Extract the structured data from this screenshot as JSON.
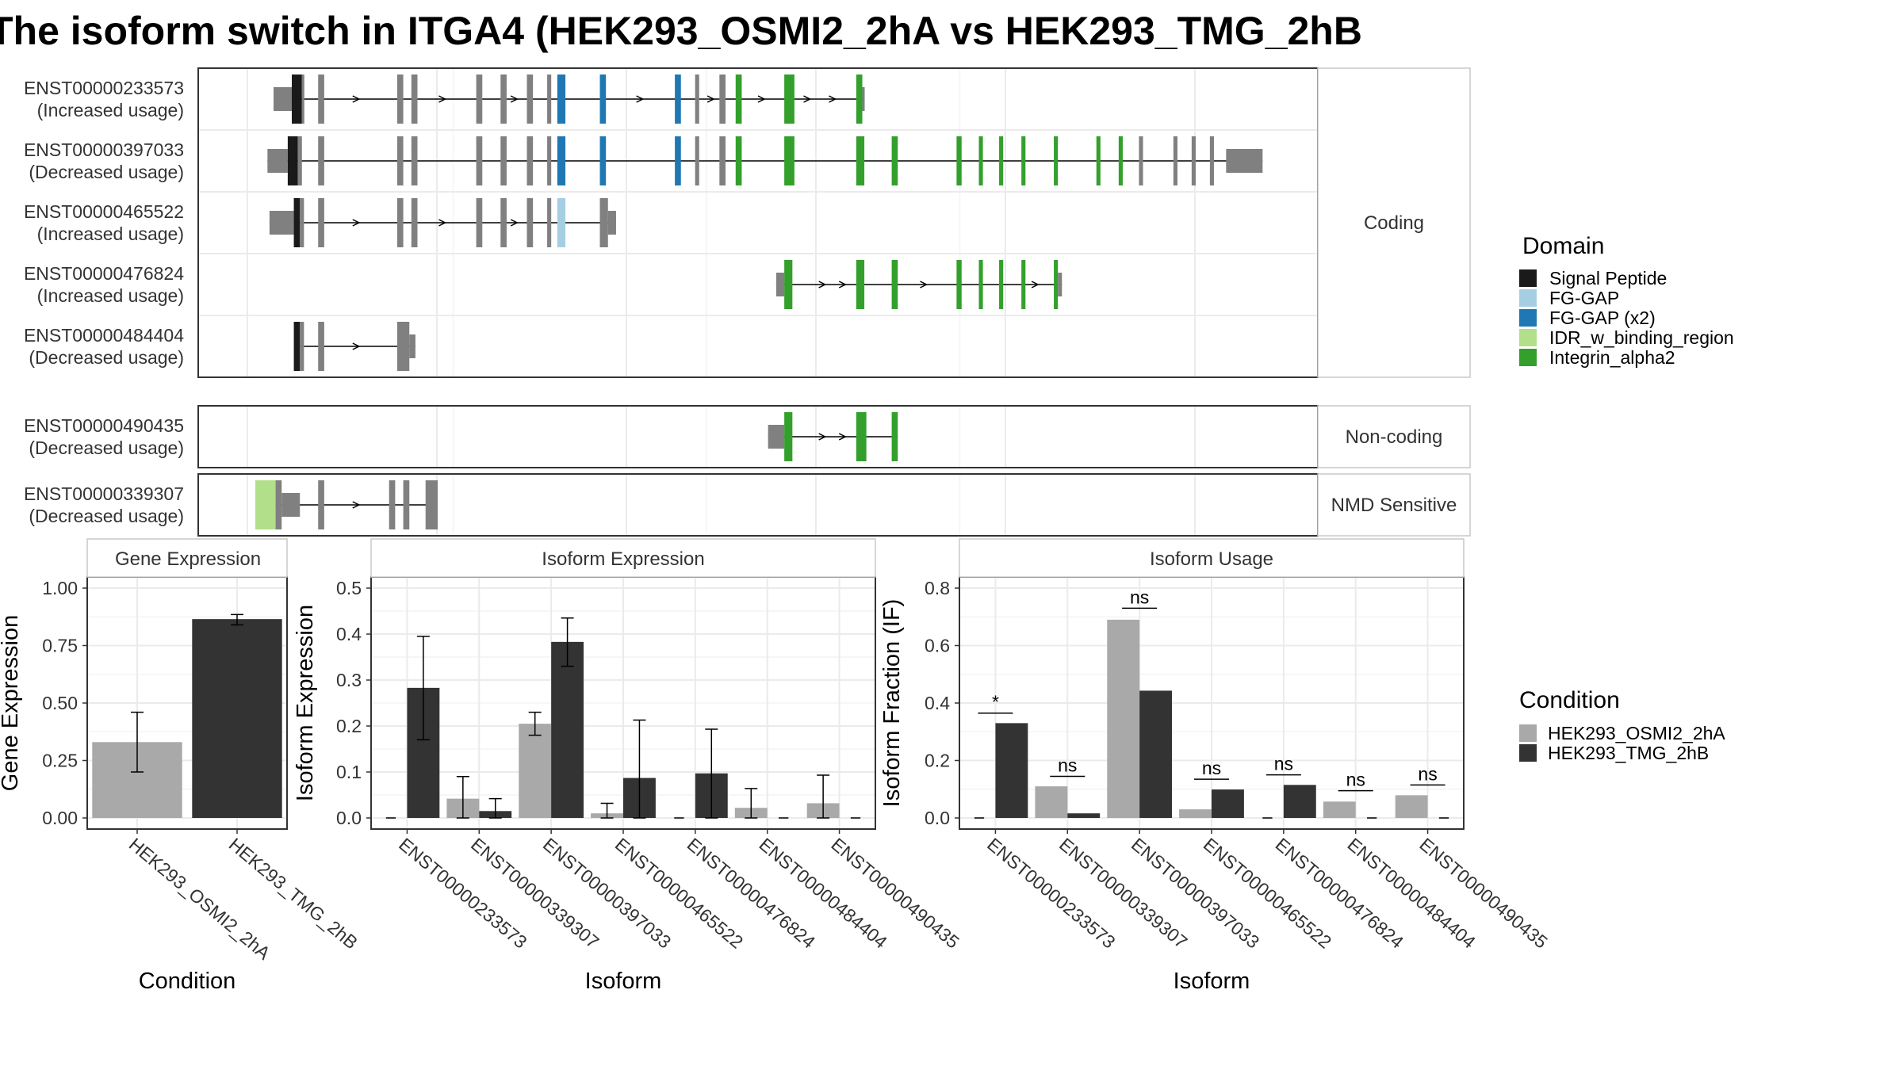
{
  "title": "The isoform switch in ITGA4 (HEK293_OSMI2_2hA vs HEK293_TMG_2hB",
  "colors": {
    "signal": "#1a1a1a",
    "fg_gap": "#a6cee3",
    "fg_gap_x2": "#1f78b4",
    "idr": "#b2df8a",
    "integrin": "#33a02c",
    "exon": "#808080",
    "cond_a": "#a9a9a9",
    "cond_b": "#333333"
  },
  "structure": {
    "xrange": [
      0,
      1000
    ],
    "groups": [
      {
        "label": "Coding",
        "transcripts": [
          {
            "id": "ENST00000233573",
            "usage": "(Increased usage)",
            "exons": [
              [
                18,
                36,
                "thin"
              ],
              [
                36,
                46,
                "signal"
              ],
              [
                46,
                48,
                "thick"
              ],
              [
                62,
                68,
                "thick"
              ],
              [
                140,
                146,
                "thick"
              ],
              [
                154,
                160,
                "thick"
              ],
              [
                218,
                224,
                "thick"
              ],
              [
                242,
                248,
                "thick"
              ],
              [
                268,
                274,
                "thick"
              ],
              [
                288,
                292,
                "thick"
              ],
              [
                298,
                306,
                "fg2"
              ],
              [
                340,
                346,
                "fg2"
              ],
              [
                414,
                420,
                "fg2"
              ],
              [
                434,
                438,
                "thick"
              ],
              [
                458,
                464,
                "thick"
              ],
              [
                474,
                480,
                "integrin"
              ],
              [
                522,
                532,
                "integrin"
              ],
              [
                593,
                599,
                "integrin"
              ],
              [
                599,
                601,
                "thin"
              ]
            ],
            "arrows": [
              100,
              185,
              256,
              380,
              450,
              500,
              545,
              570
            ]
          },
          {
            "id": "ENST00000397033",
            "usage": "(Decreased usage)",
            "exons": [
              [
                12,
                32,
                "thin"
              ],
              [
                32,
                42,
                "signal"
              ],
              [
                42,
                46,
                "thick"
              ],
              [
                62,
                68,
                "thick"
              ],
              [
                140,
                146,
                "thick"
              ],
              [
                154,
                160,
                "thick"
              ],
              [
                218,
                224,
                "thick"
              ],
              [
                242,
                248,
                "thick"
              ],
              [
                268,
                274,
                "thick"
              ],
              [
                288,
                292,
                "thick"
              ],
              [
                298,
                306,
                "fg2"
              ],
              [
                340,
                346,
                "fg2"
              ],
              [
                414,
                420,
                "fg2"
              ],
              [
                434,
                438,
                "thick"
              ],
              [
                458,
                464,
                "thick"
              ],
              [
                474,
                480,
                "integrin"
              ],
              [
                522,
                532,
                "integrin"
              ],
              [
                593,
                601,
                "integrin"
              ],
              [
                628,
                634,
                "integrin"
              ],
              [
                692,
                697,
                "integrin"
              ],
              [
                714,
                718,
                "integrin"
              ],
              [
                734,
                738,
                "integrin"
              ],
              [
                756,
                760,
                "integrin"
              ],
              [
                788,
                792,
                "integrin"
              ],
              [
                830,
                834,
                "integrin"
              ],
              [
                852,
                856,
                "integrin"
              ],
              [
                872,
                876,
                "thick"
              ],
              [
                906,
                910,
                "thick"
              ],
              [
                924,
                928,
                "thick"
              ],
              [
                942,
                946,
                "thick"
              ],
              [
                958,
                994,
                "thin"
              ]
            ],
            "arrows": []
          },
          {
            "id": "ENST00000465522",
            "usage": "(Increased usage)",
            "exons": [
              [
                14,
                38,
                "thin"
              ],
              [
                38,
                44,
                "signal"
              ],
              [
                44,
                48,
                "thick"
              ],
              [
                62,
                68,
                "thick"
              ],
              [
                140,
                146,
                "thick"
              ],
              [
                154,
                160,
                "thick"
              ],
              [
                218,
                224,
                "thick"
              ],
              [
                242,
                248,
                "thick"
              ],
              [
                268,
                274,
                "thick"
              ],
              [
                288,
                292,
                "thick"
              ],
              [
                298,
                306,
                "fg1"
              ],
              [
                340,
                348,
                "thick"
              ],
              [
                348,
                356,
                "thin"
              ]
            ],
            "arrows": [
              100,
              185,
              256
            ]
          },
          {
            "id": "ENST00000476824",
            "usage": "(Increased usage)",
            "exons": [
              [
                514,
                522,
                "thin"
              ],
              [
                522,
                530,
                "integrin"
              ],
              [
                593,
                601,
                "integrin"
              ],
              [
                628,
                634,
                "integrin"
              ],
              [
                692,
                697,
                "integrin"
              ],
              [
                714,
                718,
                "integrin"
              ],
              [
                734,
                738,
                "integrin"
              ],
              [
                756,
                760,
                "integrin"
              ],
              [
                788,
                792,
                "integrin"
              ],
              [
                792,
                796,
                "thin"
              ]
            ],
            "arrows": [
              560,
              580,
              660,
              770
            ]
          },
          {
            "id": "ENST00000484404",
            "usage": "(Decreased usage)",
            "exons": [
              [
                38,
                44,
                "signal"
              ],
              [
                44,
                48,
                "thick"
              ],
              [
                62,
                68,
                "thick"
              ],
              [
                140,
                152,
                "thick"
              ],
              [
                152,
                158,
                "thin"
              ]
            ],
            "arrows": [
              100
            ]
          }
        ]
      },
      {
        "label": "Non-coding",
        "transcripts": [
          {
            "id": "ENST00000490435",
            "usage": "(Decreased usage)",
            "exons": [
              [
                506,
                522,
                "thin"
              ],
              [
                522,
                530,
                "integrin"
              ],
              [
                593,
                603,
                "integrin"
              ],
              [
                628,
                634,
                "integrin"
              ]
            ],
            "arrows": [
              560,
              580
            ]
          }
        ]
      },
      {
        "label": "NMD Sensitive",
        "transcripts": [
          {
            "id": "ENST00000339307",
            "usage": "(Decreased usage)",
            "exons": [
              [
                0,
                20,
                "idr"
              ],
              [
                20,
                26,
                "thick"
              ],
              [
                26,
                44,
                "thin"
              ],
              [
                62,
                68,
                "thick"
              ],
              [
                132,
                138,
                "thick"
              ],
              [
                146,
                152,
                "thick"
              ],
              [
                168,
                180,
                "thick"
              ]
            ],
            "arrows": [
              100
            ]
          }
        ]
      }
    ],
    "legend": {
      "title": "Domain",
      "items": [
        {
          "name": "Signal Peptide",
          "color": "#1a1a1a"
        },
        {
          "name": "FG-GAP",
          "color": "#a6cee3"
        },
        {
          "name": "FG-GAP (x2)",
          "color": "#1f78b4"
        },
        {
          "name": "IDR_w_binding_region",
          "color": "#b2df8a"
        },
        {
          "name": "Integrin_alpha2",
          "color": "#33a02c"
        }
      ]
    }
  },
  "chart_data": [
    {
      "type": "bar",
      "panel_title": "Gene Expression",
      "xlabel": "Condition",
      "ylabel": "Gene Expression",
      "ylim": [
        0,
        1.0
      ],
      "yticks": [
        "0.00",
        "0.25",
        "0.50",
        "0.75",
        "1.00"
      ],
      "categories": [
        "HEK293_OSMI2_2hA",
        "HEK293_TMG_2hB"
      ],
      "values": [
        0.33,
        0.865
      ],
      "errors": [
        [
          0.2,
          0.46
        ],
        [
          0.84,
          0.885
        ]
      ]
    },
    {
      "type": "bar",
      "panel_title": "Isoform Expression",
      "xlabel": "Isoform",
      "ylabel": "Isoform Expression",
      "ylim": [
        0,
        0.5
      ],
      "yticks": [
        "0.0",
        "0.1",
        "0.2",
        "0.3",
        "0.4",
        "0.5"
      ],
      "categories": [
        "ENST00000233573",
        "ENST00000339307",
        "ENST00000397033",
        "ENST00000465522",
        "ENST00000476824",
        "ENST00000484404",
        "ENST00000490435"
      ],
      "series": [
        {
          "name": "HEK293_OSMI2_2hA",
          "values": [
            0.0,
            0.042,
            0.205,
            0.01,
            0.0,
            0.022,
            0.032
          ],
          "errors": [
            null,
            [
              0.0,
              0.09
            ],
            [
              0.18,
              0.23
            ],
            [
              0.0,
              0.032
            ],
            null,
            [
              0.0,
              0.064
            ],
            [
              0.0,
              0.093
            ]
          ]
        },
        {
          "name": "HEK293_TMG_2hB",
          "values": [
            0.283,
            0.015,
            0.383,
            0.087,
            0.097,
            0.0,
            0.0
          ],
          "errors": [
            [
              0.17,
              0.395
            ],
            [
              0.0,
              0.042
            ],
            [
              0.33,
              0.435
            ],
            [
              0.0,
              0.213
            ],
            [
              0.0,
              0.193
            ],
            null,
            null
          ]
        }
      ]
    },
    {
      "type": "bar",
      "panel_title": "Isoform Usage",
      "xlabel": "Isoform",
      "ylabel": "Isoform Fraction (IF)",
      "ylim": [
        0,
        0.8
      ],
      "yticks": [
        "0.0",
        "0.2",
        "0.4",
        "0.6",
        "0.8"
      ],
      "categories": [
        "ENST00000233573",
        "ENST00000339307",
        "ENST00000397033",
        "ENST00000465522",
        "ENST00000476824",
        "ENST00000484404",
        "ENST00000490435"
      ],
      "series": [
        {
          "name": "HEK293_OSMI2_2hA",
          "values": [
            0.0,
            0.11,
            0.69,
            0.03,
            0.0,
            0.057,
            0.079
          ]
        },
        {
          "name": "HEK293_TMG_2hB",
          "values": [
            0.33,
            0.016,
            0.443,
            0.099,
            0.115,
            0.0,
            0.0
          ]
        }
      ],
      "significance": [
        {
          "label": "*",
          "y": 0.365
        },
        {
          "label": "ns",
          "y": 0.145
        },
        {
          "label": "ns",
          "y": 0.73
        },
        {
          "label": "ns",
          "y": 0.135
        },
        {
          "label": "ns",
          "y": 0.15
        },
        {
          "label": "ns",
          "y": 0.095
        },
        {
          "label": "ns",
          "y": 0.115
        }
      ]
    }
  ],
  "condition_legend": {
    "title": "Condition",
    "items": [
      {
        "name": "HEK293_OSMI2_2hA",
        "color": "#a9a9a9"
      },
      {
        "name": "HEK293_TMG_2hB",
        "color": "#333333"
      }
    ]
  }
}
